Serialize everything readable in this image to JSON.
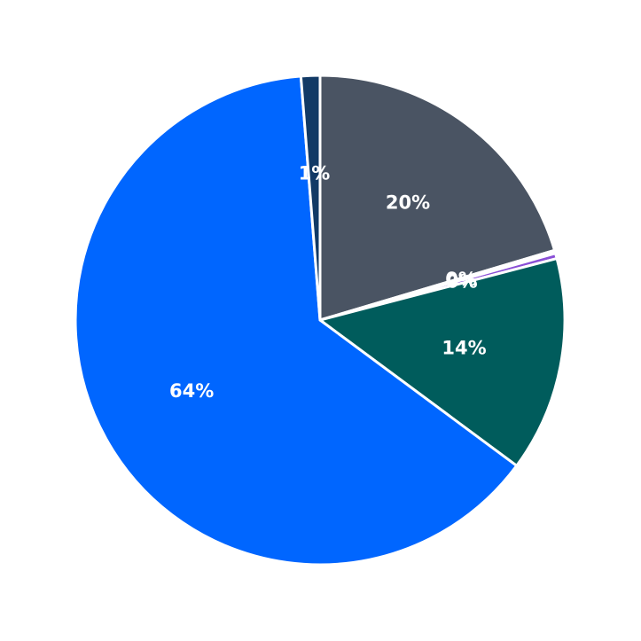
{
  "chart_data": {
    "type": "pie",
    "start_angle_deg": 90,
    "direction": "clockwise",
    "slices": [
      {
        "label": "20%",
        "value": 20.4,
        "color": "#4a5463"
      },
      {
        "label": "0%",
        "value": 0.2,
        "color": "#ffffff"
      },
      {
        "label": "0%",
        "value": 0.35,
        "color": "#8a4fd6"
      },
      {
        "label": "14%",
        "value": 14.2,
        "color": "#005c5c"
      },
      {
        "label": "64%",
        "value": 63.6,
        "color": "#0066ff"
      },
      {
        "label": "1%",
        "value": 1.25,
        "color": "#123a66"
      }
    ],
    "slice_edge_color": "#ffffff",
    "grid": false,
    "legend": "none"
  }
}
